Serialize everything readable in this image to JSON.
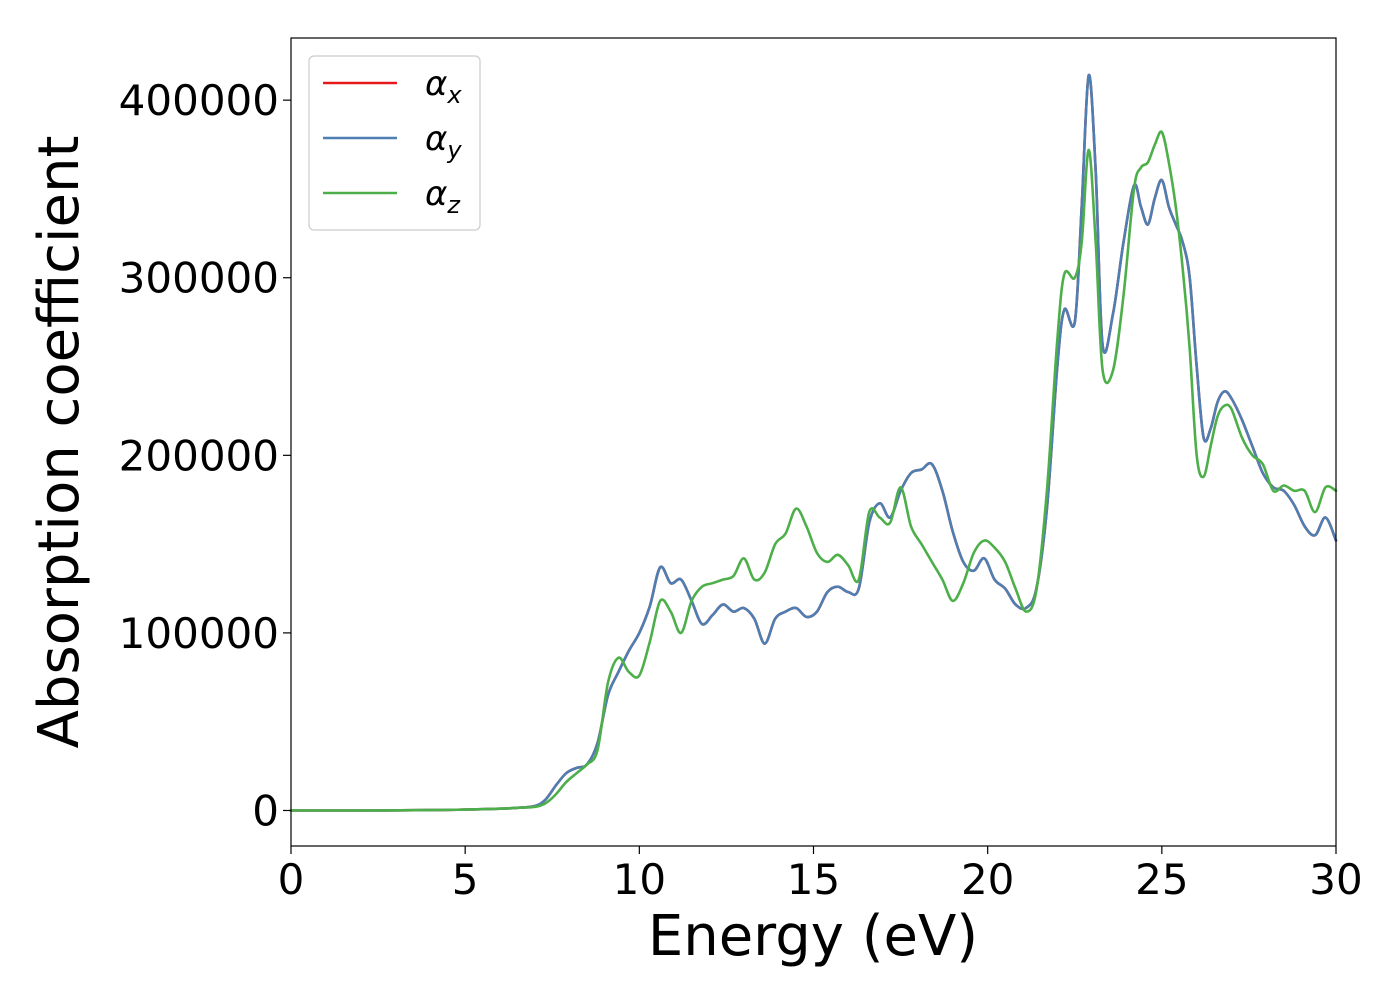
{
  "chart_data": {
    "type": "line",
    "title": "",
    "xlabel": "Energy (eV)",
    "ylabel": "Absorption coefficient",
    "xlim": [
      0,
      30
    ],
    "ylim": [
      -20000,
      435000
    ],
    "xticks": [
      0,
      5,
      10,
      15,
      20,
      25,
      30
    ],
    "xtick_labels": [
      "0",
      "5",
      "10",
      "15",
      "20",
      "25",
      "30"
    ],
    "yticks": [
      0,
      100000,
      200000,
      300000,
      400000
    ],
    "ytick_labels": [
      "0",
      "100000",
      "200000",
      "300000",
      "400000"
    ],
    "grid": false,
    "legend_position": "upper-left",
    "series": [
      {
        "name": "αx",
        "legend_base": "α",
        "legend_sub": "x",
        "color": "#e41a1c",
        "x": [
          0,
          2,
          4,
          5,
          6,
          6.5,
          7,
          7.3,
          7.6,
          7.9,
          8.2,
          8.5,
          8.8,
          9.1,
          9.4,
          9.7,
          10.0,
          10.3,
          10.6,
          10.9,
          11.2,
          11.5,
          11.8,
          12.1,
          12.4,
          12.7,
          13.0,
          13.3,
          13.6,
          13.9,
          14.2,
          14.5,
          14.8,
          15.1,
          15.4,
          15.7,
          16.0,
          16.3,
          16.6,
          16.9,
          17.2,
          17.5,
          17.8,
          18.1,
          18.4,
          18.7,
          19.0,
          19.3,
          19.6,
          19.9,
          20.2,
          20.5,
          20.8,
          21.1,
          21.4,
          21.7,
          22.0,
          22.2,
          22.5,
          22.7,
          22.9,
          23.1,
          23.3,
          23.6,
          23.9,
          24.2,
          24.4,
          24.6,
          24.8,
          25.0,
          25.2,
          25.4,
          25.6,
          25.8,
          26.0,
          26.2,
          26.4,
          26.6,
          26.8,
          27.0,
          27.3,
          27.6,
          27.9,
          28.2,
          28.5,
          28.8,
          29.1,
          29.4,
          29.7,
          30.0
        ],
        "values": [
          0,
          0,
          200,
          500,
          1000,
          1500,
          2500,
          6000,
          14000,
          21000,
          24000,
          26000,
          38000,
          65000,
          78000,
          90000,
          100000,
          115000,
          137000,
          128000,
          130000,
          118000,
          105000,
          110000,
          116000,
          112000,
          114000,
          108000,
          94000,
          108000,
          112000,
          114000,
          109000,
          112000,
          123000,
          126000,
          123000,
          125000,
          162000,
          173000,
          165000,
          180000,
          190000,
          192000,
          195000,
          180000,
          157000,
          140000,
          135000,
          142000,
          130000,
          125000,
          116000,
          114000,
          125000,
          170000,
          250000,
          282000,
          275000,
          340000,
          414000,
          360000,
          262000,
          280000,
          320000,
          352000,
          340000,
          330000,
          345000,
          355000,
          340000,
          330000,
          320000,
          300000,
          250000,
          210000,
          215000,
          230000,
          236000,
          232000,
          220000,
          205000,
          190000,
          182000,
          180000,
          172000,
          160000,
          155000,
          165000,
          152000
        ]
      },
      {
        "name": "αy",
        "legend_base": "α",
        "legend_sub": "y",
        "color": "#4d7fb2",
        "x": [
          0,
          2,
          4,
          5,
          6,
          6.5,
          7,
          7.3,
          7.6,
          7.9,
          8.2,
          8.5,
          8.8,
          9.1,
          9.4,
          9.7,
          10.0,
          10.3,
          10.6,
          10.9,
          11.2,
          11.5,
          11.8,
          12.1,
          12.4,
          12.7,
          13.0,
          13.3,
          13.6,
          13.9,
          14.2,
          14.5,
          14.8,
          15.1,
          15.4,
          15.7,
          16.0,
          16.3,
          16.6,
          16.9,
          17.2,
          17.5,
          17.8,
          18.1,
          18.4,
          18.7,
          19.0,
          19.3,
          19.6,
          19.9,
          20.2,
          20.5,
          20.8,
          21.1,
          21.4,
          21.7,
          22.0,
          22.2,
          22.5,
          22.7,
          22.9,
          23.1,
          23.3,
          23.6,
          23.9,
          24.2,
          24.4,
          24.6,
          24.8,
          25.0,
          25.2,
          25.4,
          25.6,
          25.8,
          26.0,
          26.2,
          26.4,
          26.6,
          26.8,
          27.0,
          27.3,
          27.6,
          27.9,
          28.2,
          28.5,
          28.8,
          29.1,
          29.4,
          29.7,
          30.0
        ],
        "values": [
          0,
          0,
          200,
          500,
          1000,
          1500,
          2500,
          6000,
          14000,
          21000,
          24000,
          26000,
          38000,
          65000,
          78000,
          90000,
          100000,
          115000,
          137000,
          128000,
          130000,
          118000,
          105000,
          110000,
          116000,
          112000,
          114000,
          108000,
          94000,
          108000,
          112000,
          114000,
          109000,
          112000,
          123000,
          126000,
          123000,
          125000,
          162000,
          173000,
          165000,
          180000,
          190000,
          192000,
          195000,
          180000,
          157000,
          140000,
          135000,
          142000,
          130000,
          125000,
          116000,
          114000,
          125000,
          170000,
          250000,
          282000,
          275000,
          340000,
          414000,
          360000,
          262000,
          280000,
          320000,
          352000,
          340000,
          330000,
          345000,
          355000,
          340000,
          330000,
          320000,
          300000,
          250000,
          210000,
          215000,
          230000,
          236000,
          232000,
          220000,
          205000,
          190000,
          182000,
          180000,
          172000,
          160000,
          155000,
          165000,
          152000
        ]
      },
      {
        "name": "αz",
        "legend_base": "α",
        "legend_sub": "z",
        "color": "#4daf4a",
        "x": [
          0,
          2,
          4,
          5,
          6,
          6.5,
          7,
          7.3,
          7.6,
          7.9,
          8.2,
          8.5,
          8.8,
          9.1,
          9.4,
          9.7,
          10.0,
          10.3,
          10.6,
          10.9,
          11.2,
          11.5,
          11.8,
          12.1,
          12.4,
          12.7,
          13.0,
          13.3,
          13.6,
          13.9,
          14.2,
          14.5,
          14.8,
          15.1,
          15.4,
          15.7,
          16.0,
          16.3,
          16.6,
          16.9,
          17.2,
          17.5,
          17.8,
          18.1,
          18.4,
          18.7,
          19.0,
          19.3,
          19.6,
          19.9,
          20.2,
          20.5,
          20.8,
          21.1,
          21.4,
          21.7,
          22.0,
          22.2,
          22.5,
          22.7,
          22.9,
          23.1,
          23.3,
          23.6,
          23.9,
          24.2,
          24.4,
          24.6,
          24.8,
          25.0,
          25.2,
          25.4,
          25.6,
          25.8,
          26.0,
          26.2,
          26.4,
          26.6,
          26.8,
          27.0,
          27.3,
          27.6,
          27.9,
          28.2,
          28.5,
          28.8,
          29.1,
          29.4,
          29.7,
          30.0
        ],
        "values": [
          0,
          0,
          200,
          500,
          1000,
          1500,
          2000,
          4000,
          9000,
          16000,
          21000,
          26000,
          34000,
          72000,
          86000,
          78000,
          76000,
          95000,
          118000,
          112000,
          100000,
          118000,
          126000,
          128000,
          130000,
          132000,
          142000,
          130000,
          134000,
          150000,
          156000,
          170000,
          160000,
          145000,
          140000,
          144000,
          138000,
          130000,
          168000,
          165000,
          162000,
          182000,
          160000,
          150000,
          140000,
          130000,
          118000,
          128000,
          145000,
          152000,
          148000,
          140000,
          125000,
          112000,
          124000,
          180000,
          265000,
          302000,
          300000,
          320000,
          372000,
          320000,
          248000,
          248000,
          290000,
          350000,
          362000,
          365000,
          375000,
          382000,
          365000,
          340000,
          305000,
          260000,
          200000,
          188000,
          205000,
          222000,
          228000,
          226000,
          210000,
          200000,
          195000,
          180000,
          183000,
          180000,
          180000,
          168000,
          182000,
          180000
        ]
      }
    ]
  }
}
